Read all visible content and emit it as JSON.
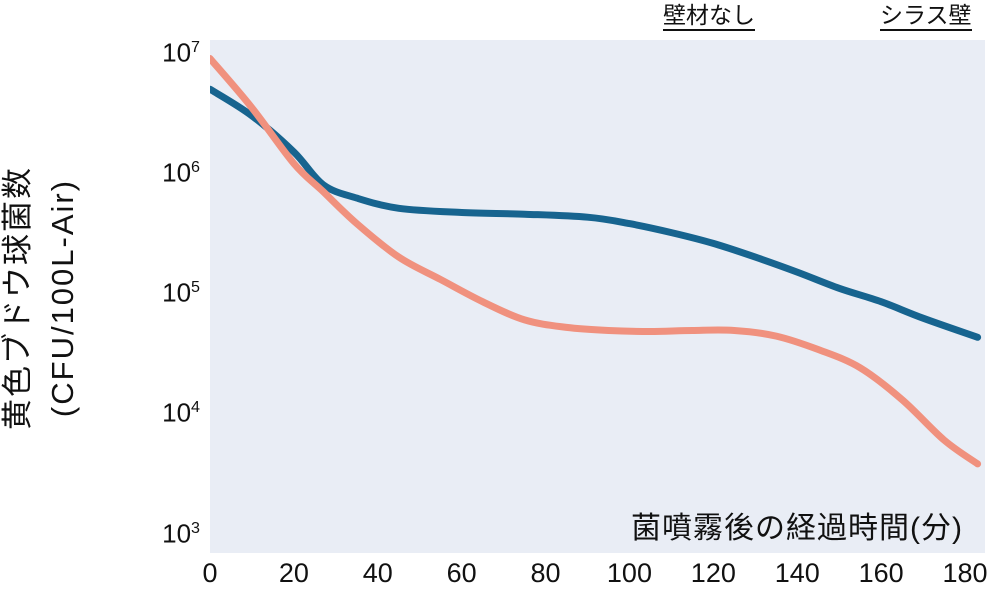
{
  "y_axis": {
    "title_line1": "黄色ブドウ球菌数",
    "title_line2": "(CFU/100L-Air)"
  },
  "chart_data": {
    "type": "line",
    "title": "",
    "xlabel": "菌噴霧後の経過時間(分)",
    "ylabel": "黄色ブドウ球菌数 (CFU/100L-Air)",
    "x_unit": "minutes",
    "y_scale": "log",
    "xlim": [
      0,
      184
    ],
    "ylim": [
      1000,
      10000000
    ],
    "x_ticks": [
      0,
      20,
      40,
      60,
      80,
      100,
      120,
      140,
      160,
      180
    ],
    "y_ticks_exponents": [
      7,
      6,
      5,
      4,
      3
    ],
    "grid": false,
    "legend_position": "top",
    "plot_background": "#e9edf5",
    "series": [
      {
        "name": "壁材なし",
        "color": "#17648f",
        "points": [
          [
            0,
            5000000
          ],
          [
            10,
            3000000
          ],
          [
            20,
            1500000
          ],
          [
            27,
            800000
          ],
          [
            35,
            620000
          ],
          [
            45,
            510000
          ],
          [
            60,
            470000
          ],
          [
            75,
            455000
          ],
          [
            90,
            430000
          ],
          [
            100,
            380000
          ],
          [
            110,
            320000
          ],
          [
            120,
            260000
          ],
          [
            130,
            200000
          ],
          [
            140,
            150000
          ],
          [
            150,
            110000
          ],
          [
            160,
            85000
          ],
          [
            170,
            62000
          ],
          [
            183,
            43000
          ]
        ]
      },
      {
        "name": "シラス壁",
        "color": "#f0917e",
        "points": [
          [
            0,
            9000000
          ],
          [
            10,
            3500000
          ],
          [
            20,
            1200000
          ],
          [
            27,
            700000
          ],
          [
            35,
            380000
          ],
          [
            45,
            200000
          ],
          [
            55,
            130000
          ],
          [
            65,
            85000
          ],
          [
            75,
            60000
          ],
          [
            85,
            52000
          ],
          [
            95,
            49000
          ],
          [
            105,
            48000
          ],
          [
            115,
            49000
          ],
          [
            125,
            49000
          ],
          [
            135,
            44000
          ],
          [
            145,
            34000
          ],
          [
            155,
            24000
          ],
          [
            165,
            13000
          ],
          [
            175,
            6000
          ],
          [
            183,
            3800
          ]
        ]
      }
    ]
  }
}
